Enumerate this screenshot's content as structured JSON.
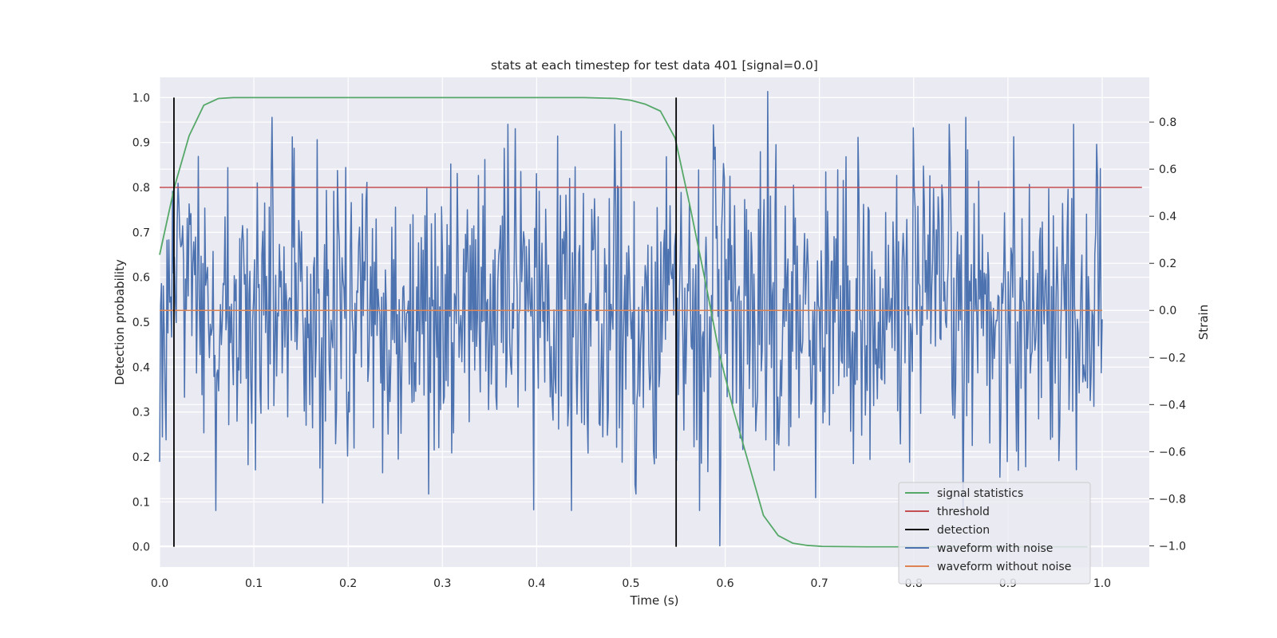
{
  "chart_data": {
    "type": "line",
    "title": "stats at each timestep for test data 401 [signal=0.0]",
    "xlabel": "Time (s)",
    "ylabel_left": "Detection probability",
    "ylabel_right": "Strain",
    "xlim": [
      0.0,
      1.05
    ],
    "ylim_left": [
      -0.045,
      1.045
    ],
    "ylim_right": [
      -1.09,
      0.99
    ],
    "x_ticks": [
      "0.0",
      "0.1",
      "0.2",
      "0.3",
      "0.4",
      "0.5",
      "0.6",
      "0.7",
      "0.8",
      "0.9",
      "1.0"
    ],
    "y_left_ticks": [
      "0.0",
      "0.1",
      "0.2",
      "0.3",
      "0.4",
      "0.5",
      "0.6",
      "0.7",
      "0.8",
      "0.9",
      "1.0"
    ],
    "y_right_ticks": [
      "−1.0",
      "−0.8",
      "−0.6",
      "−0.4",
      "−0.2",
      "0.0",
      "0.2",
      "0.4",
      "0.6",
      "0.8"
    ],
    "grid": true,
    "legend_position": "lower right",
    "colors": {
      "background": "#eaeaf2",
      "grid": "#ffffff",
      "signal_statistics": "#55a868",
      "threshold": "#c44e52",
      "detection": "#000000",
      "waveform_with_noise": "#4c72b0",
      "waveform_without_noise": "#dd8452"
    },
    "series": [
      {
        "name": "signal statistics",
        "axis": "left",
        "x": [
          0.0,
          0.0156,
          0.0313,
          0.0469,
          0.0625,
          0.0781,
          0.0938,
          0.1094,
          0.125,
          0.2,
          0.3,
          0.4,
          0.45,
          0.4844,
          0.5,
          0.5156,
          0.5313,
          0.5469,
          0.5625,
          0.5781,
          0.5938,
          0.6094,
          0.625,
          0.6406,
          0.6563,
          0.6719,
          0.6875,
          0.7031,
          0.75,
          0.8,
          0.9,
          0.95,
          0.9844
        ],
        "y": [
          0.65,
          0.8,
          0.915,
          0.983,
          0.998,
          1.0,
          1.0,
          1.0,
          1.0,
          1.0,
          1.0,
          1.0,
          1.0,
          0.998,
          0.994,
          0.985,
          0.97,
          0.91,
          0.76,
          0.6,
          0.43,
          0.3,
          0.185,
          0.07,
          0.025,
          0.008,
          0.003,
          0.001,
          0.0,
          0.0,
          0.0,
          0.0,
          0.0
        ]
      },
      {
        "name": "threshold",
        "axis": "left",
        "x": [
          0.0,
          1.0422
        ],
        "y": [
          0.8,
          0.8
        ]
      },
      {
        "name": "detection",
        "axis": "left",
        "vlines": [
          0.0152,
          0.548
        ],
        "ymin": 0.0,
        "ymax": 1.0
      },
      {
        "name": "waveform with noise",
        "axis": "right",
        "n_points": 1024,
        "x_range": [
          0.0,
          1.0
        ],
        "y_range": [
          -1.0,
          0.93
        ],
        "noise_std": 0.32,
        "notable_extremes": [
          {
            "x": 0.645,
            "y": 0.93
          },
          {
            "x": 0.594,
            "y": -1.0
          },
          {
            "x": 0.855,
            "y": 0.82
          },
          {
            "x": 0.119,
            "y": 0.82
          },
          {
            "x": 0.285,
            "y": -0.78
          },
          {
            "x": 0.505,
            "y": -0.78
          },
          {
            "x": 0.17,
            "y": -0.67
          }
        ]
      },
      {
        "name": "waveform without noise",
        "axis": "right",
        "x": [
          0.0,
          1.0
        ],
        "y": [
          0.0,
          0.0
        ]
      }
    ]
  }
}
